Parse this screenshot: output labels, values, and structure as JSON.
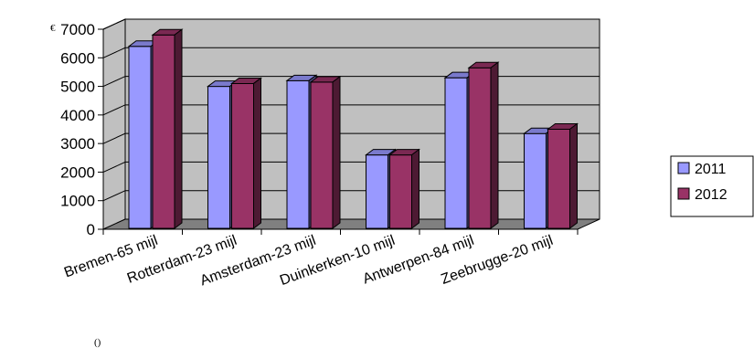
{
  "chart_data": {
    "type": "bar",
    "categories": [
      "Bremen-65 mijl",
      "Rotterdam-23 mijl",
      "Amsterdam-23 mijl",
      "Duinkerken-10 mijl",
      "Antwerpen-84 mijl",
      "Zeebrugge-20 mijl"
    ],
    "series": [
      {
        "name": "2011",
        "values": [
          6400,
          5000,
          5200,
          2600,
          5300,
          3350
        ],
        "color": "#9999ff"
      },
      {
        "name": "2012",
        "values": [
          6800,
          5100,
          5150,
          2600,
          5650,
          3500
        ],
        "color": "#993366"
      }
    ],
    "yticks": [
      "0",
      "1000",
      "2000",
      "3000",
      "4000",
      "5000",
      "6000",
      "7000"
    ],
    "ylim": [
      0,
      7000
    ],
    "legend_position": "right",
    "grid": true,
    "unit_mark": "€",
    "corner_mark": "()",
    "wall_color": "#c0c0c0",
    "floor_color": "#808080"
  }
}
